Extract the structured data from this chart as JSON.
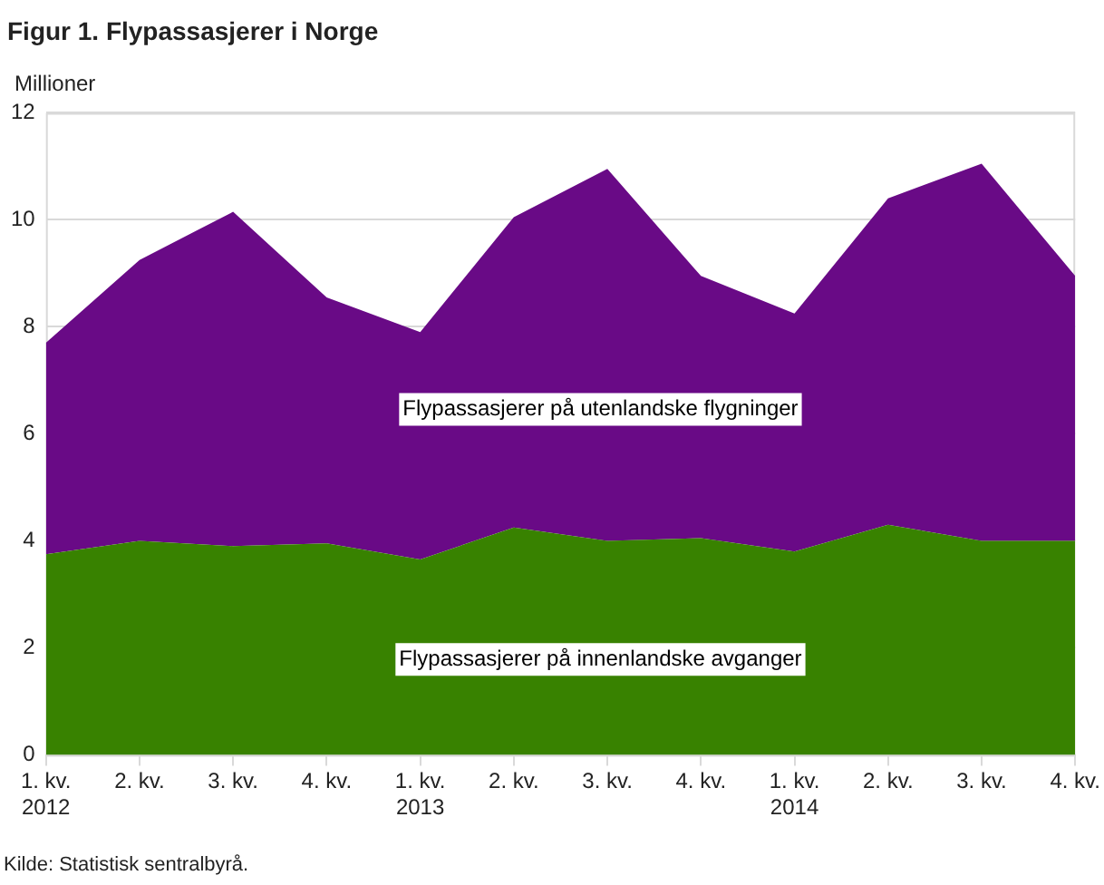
{
  "chart_data": {
    "type": "area",
    "title": "Figur 1. Flypassasjerer i Norge",
    "ylabel": "Millioner",
    "annotations": [
      "Kilde: Statistisk sentralbyrå."
    ],
    "categories": [
      "1. kv.\n2012",
      "2. kv.",
      "3. kv.",
      "4. kv.",
      "1. kv.\n2013",
      "2. kv.",
      "3. kv.",
      "4. kv.",
      "1. kv.\n2014",
      "2. kv.",
      "3. kv.",
      "4. kv."
    ],
    "stacked": true,
    "series": [
      {
        "name": "Flypassasjerer på innenlandske avganger",
        "color": "#388200",
        "values": [
          3.75,
          4.0,
          3.9,
          3.95,
          3.65,
          4.25,
          4.0,
          4.05,
          3.8,
          4.3,
          4.0,
          4.0
        ]
      },
      {
        "name": "Flypassasjerer på utenlandske flygninger",
        "color": "#690a86",
        "values": [
          3.95,
          5.25,
          6.25,
          4.6,
          4.25,
          5.8,
          6.95,
          4.9,
          4.45,
          6.1,
          7.05,
          4.95
        ]
      }
    ],
    "ylim": [
      0,
      12
    ],
    "yticks": [
      0,
      2,
      4,
      6,
      8,
      10,
      12
    ],
    "grid": "y",
    "legend": false
  }
}
